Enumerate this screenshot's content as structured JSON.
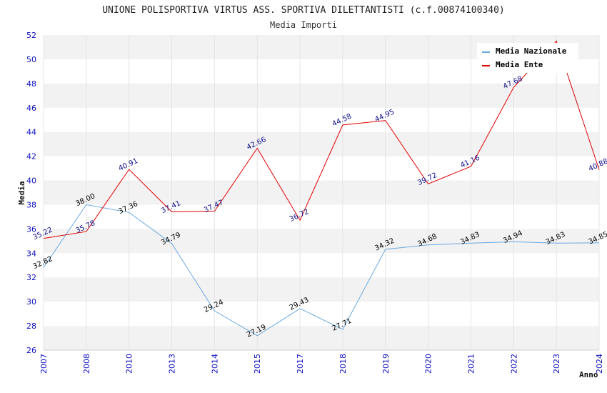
{
  "chart_data": {
    "type": "line",
    "title": "UNIONE POLISPORTIVA VIRTUS ASS. SPORTIVA DILETTANTISTI (c.f.00874100340)",
    "subtitle": "Media Importi",
    "xlabel": "Anno",
    "ylabel": "Media",
    "categories": [
      "2007",
      "2008",
      "2010",
      "2013",
      "2014",
      "2015",
      "2017",
      "2018",
      "2019",
      "2020",
      "2021",
      "2022",
      "2023",
      "2024"
    ],
    "ylim": [
      26,
      52
    ],
    "yticks": [
      "26",
      "28",
      "30",
      "32",
      "34",
      "36",
      "38",
      "40",
      "42",
      "44",
      "46",
      "48",
      "50",
      "52"
    ],
    "grid": "horizontal bands",
    "legend_position": "top-right",
    "series": [
      {
        "name": "Media Nazionale",
        "color": "#6aa9e0",
        "label_color": "#000000",
        "values": [
          32.82,
          38.0,
          37.36,
          34.79,
          29.24,
          27.19,
          29.43,
          27.71,
          34.32,
          34.68,
          34.83,
          34.94,
          34.83,
          34.85
        ],
        "labels": [
          "32.82",
          "38.00",
          "37.36",
          "34.79",
          "29.24",
          "27.19",
          "29.43",
          "27.71",
          "34.32",
          "34.68",
          "34.83",
          "34.94",
          "34.83",
          "34.85"
        ]
      },
      {
        "name": "Media Ente",
        "color": "#e00000",
        "label_color": "#10108a",
        "values": [
          35.22,
          35.78,
          40.91,
          37.41,
          37.47,
          42.66,
          36.72,
          44.58,
          44.95,
          39.72,
          41.16,
          47.68,
          51.5,
          40.88
        ],
        "labels": [
          "35.22",
          "35.78",
          "40.91",
          "37.41",
          "37.47",
          "42.66",
          "36.72",
          "44.58",
          "44.95",
          "39.72",
          "41.16",
          "47.68",
          "",
          "40.88"
        ]
      }
    ]
  }
}
